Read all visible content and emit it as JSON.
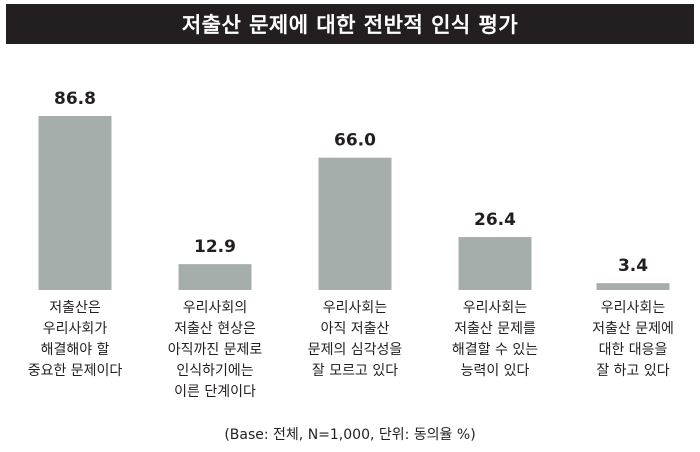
{
  "chart_data": {
    "type": "bar",
    "title": "저출산 문제에 대한 전반적 인식 평가",
    "categories": [
      [
        "저출산은",
        "우리사회가",
        "해결해야 할",
        "중요한 문제이다"
      ],
      [
        "우리사회의",
        "저출산 현상은",
        "아직까진 문제로",
        "인식하기에는",
        "이른 단계이다"
      ],
      [
        "우리사회는",
        "아직 저출산",
        "문제의 심각성을",
        "잘 모르고 있다"
      ],
      [
        "우리사회는",
        "저출산 문제를",
        "해결할 수 있는",
        "능력이 있다"
      ],
      [
        "우리사회는",
        "저출산 문제에",
        "대한 대응을",
        "잘 하고 있다"
      ]
    ],
    "values": [
      86.8,
      12.9,
      66.0,
      26.4,
      3.4
    ],
    "value_labels": [
      "86.8",
      "12.9",
      "66.0",
      "26.4",
      "3.4"
    ],
    "ylim": [
      0,
      100
    ],
    "bar_color": "#a6aeab",
    "note": "(Base: 전체, N=1,000, 단위: 동의율 %)"
  }
}
